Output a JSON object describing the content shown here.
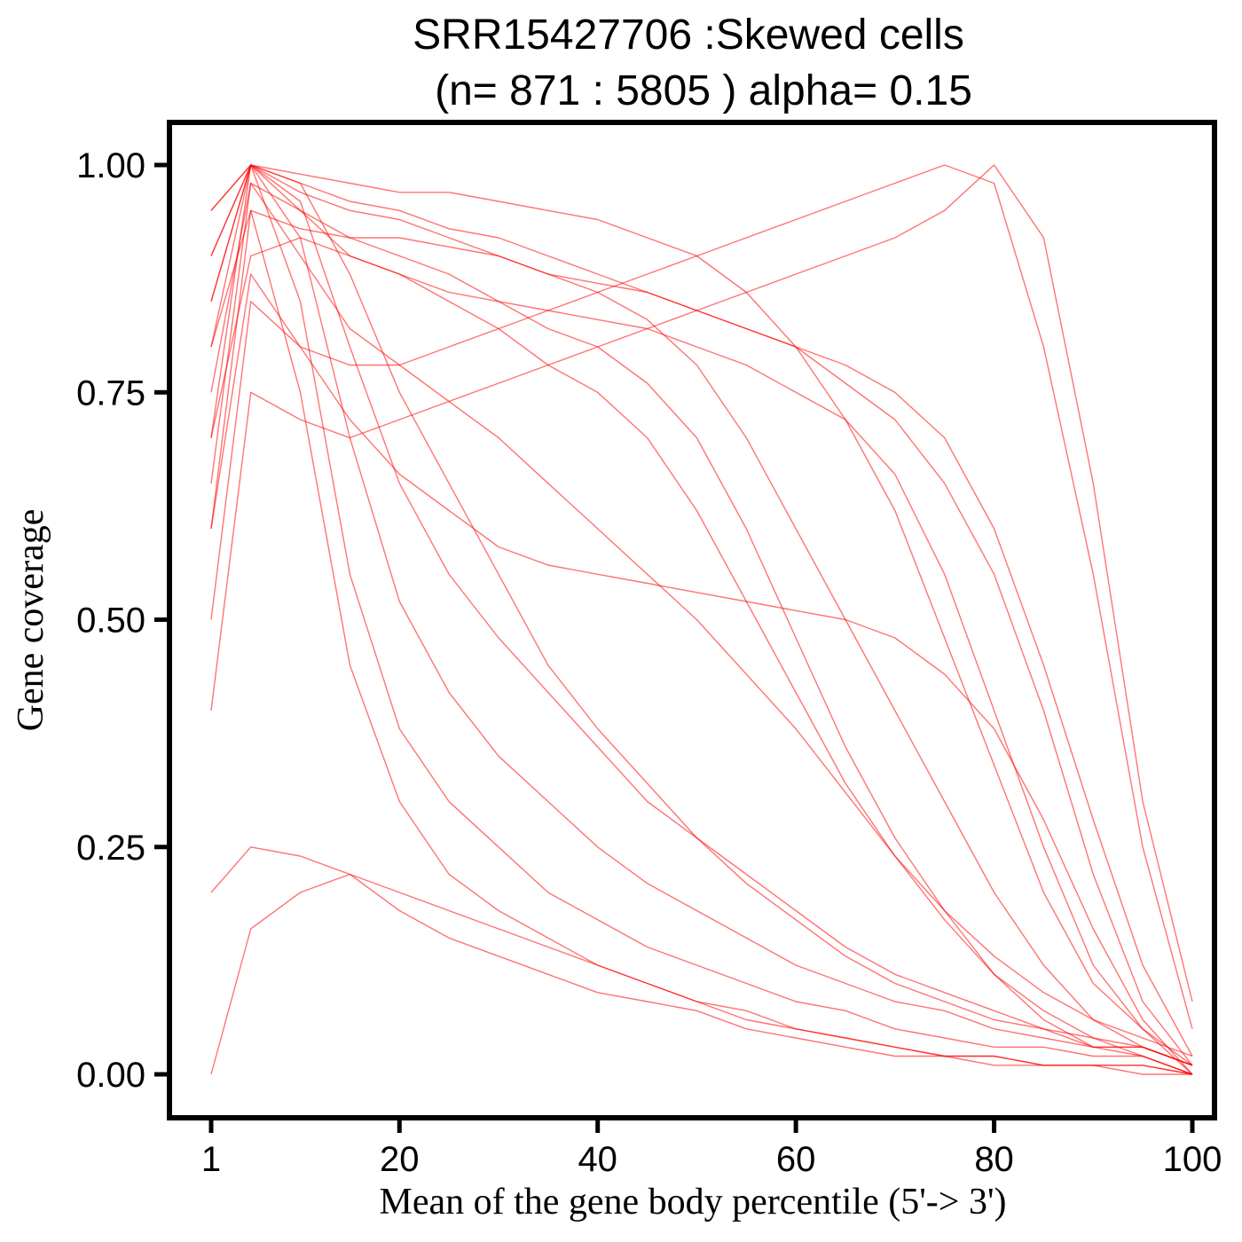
{
  "chart_data": {
    "type": "line",
    "title_line1": "SRR15427706 :Skewed cells",
    "title_line2": "(n= 871 : 5805 ) alpha= 0.15",
    "xlabel": "Mean of the gene body percentile (5'-> 3')",
    "ylabel": "Gene coverage",
    "xlim": [
      1,
      100
    ],
    "ylim": [
      0,
      1
    ],
    "xticks": [
      1,
      20,
      40,
      60,
      80,
      100
    ],
    "xtick_labels": [
      "1",
      "20",
      "40",
      "60",
      "80",
      "100"
    ],
    "yticks": [
      0,
      0.25,
      0.5,
      0.75,
      1.0
    ],
    "ytick_labels": [
      "0.00",
      "0.25",
      "0.50",
      "0.75",
      "1.00"
    ],
    "line_color": "#ff0000",
    "line_alpha": 0.15,
    "n_lines": 871,
    "x": [
      1,
      5,
      10,
      15,
      20,
      25,
      30,
      35,
      40,
      45,
      50,
      55,
      60,
      65,
      70,
      75,
      80,
      85,
      90,
      95,
      100
    ],
    "series": [
      {
        "values": [
          0.7,
          1.0,
          0.85,
          0.55,
          0.38,
          0.3,
          0.25,
          0.2,
          0.17,
          0.14,
          0.12,
          0.1,
          0.08,
          0.07,
          0.05,
          0.04,
          0.03,
          0.03,
          0.02,
          0.02,
          0.0
        ]
      },
      {
        "values": [
          0.8,
          1.0,
          0.92,
          0.7,
          0.52,
          0.42,
          0.35,
          0.3,
          0.25,
          0.21,
          0.18,
          0.15,
          0.12,
          0.1,
          0.08,
          0.07,
          0.05,
          0.04,
          0.03,
          0.03,
          0.01
        ]
      },
      {
        "values": [
          0.6,
          0.95,
          0.75,
          0.45,
          0.3,
          0.22,
          0.18,
          0.15,
          0.12,
          0.1,
          0.08,
          0.06,
          0.05,
          0.04,
          0.03,
          0.02,
          0.02,
          0.01,
          0.01,
          0.01,
          0.0
        ]
      },
      {
        "values": [
          0.9,
          1.0,
          0.98,
          0.88,
          0.75,
          0.65,
          0.55,
          0.45,
          0.38,
          0.32,
          0.26,
          0.21,
          0.17,
          0.13,
          0.1,
          0.08,
          0.06,
          0.05,
          0.03,
          0.03,
          0.01
        ]
      },
      {
        "values": [
          0.85,
          1.0,
          0.95,
          0.9,
          0.88,
          0.85,
          0.82,
          0.78,
          0.75,
          0.7,
          0.62,
          0.52,
          0.42,
          0.32,
          0.24,
          0.17,
          0.11,
          0.07,
          0.04,
          0.02,
          0.0
        ]
      },
      {
        "values": [
          0.75,
          0.98,
          0.95,
          0.92,
          0.9,
          0.88,
          0.85,
          0.82,
          0.8,
          0.76,
          0.7,
          0.6,
          0.48,
          0.36,
          0.26,
          0.18,
          0.11,
          0.06,
          0.03,
          0.02,
          0.0
        ]
      },
      {
        "values": [
          0.9,
          1.0,
          0.97,
          0.95,
          0.94,
          0.92,
          0.9,
          0.88,
          0.86,
          0.83,
          0.78,
          0.7,
          0.6,
          0.5,
          0.4,
          0.3,
          0.2,
          0.12,
          0.06,
          0.03,
          0.01
        ]
      },
      {
        "values": [
          0.7,
          0.9,
          0.92,
          0.9,
          0.88,
          0.86,
          0.85,
          0.84,
          0.83,
          0.82,
          0.8,
          0.78,
          0.75,
          0.72,
          0.66,
          0.55,
          0.4,
          0.25,
          0.12,
          0.05,
          0.0
        ]
      },
      {
        "values": [
          0.8,
          0.95,
          0.93,
          0.92,
          0.92,
          0.91,
          0.9,
          0.88,
          0.87,
          0.86,
          0.84,
          0.82,
          0.8,
          0.78,
          0.75,
          0.7,
          0.6,
          0.45,
          0.28,
          0.12,
          0.02
        ]
      },
      {
        "values": [
          0.5,
          0.85,
          0.8,
          0.78,
          0.78,
          0.8,
          0.82,
          0.84,
          0.86,
          0.88,
          0.9,
          0.92,
          0.94,
          0.96,
          0.98,
          1.0,
          0.98,
          0.8,
          0.55,
          0.25,
          0.05
        ]
      },
      {
        "values": [
          0.4,
          0.75,
          0.72,
          0.7,
          0.72,
          0.74,
          0.76,
          0.78,
          0.8,
          0.82,
          0.84,
          0.86,
          0.88,
          0.9,
          0.92,
          0.95,
          1.0,
          0.92,
          0.65,
          0.3,
          0.08
        ]
      },
      {
        "values": [
          0.95,
          1.0,
          0.98,
          0.96,
          0.95,
          0.93,
          0.92,
          0.9,
          0.88,
          0.86,
          0.84,
          0.82,
          0.8,
          0.76,
          0.72,
          0.65,
          0.55,
          0.4,
          0.22,
          0.08,
          0.01
        ]
      },
      {
        "values": [
          0.2,
          0.25,
          0.24,
          0.22,
          0.2,
          0.18,
          0.16,
          0.14,
          0.12,
          0.1,
          0.08,
          0.07,
          0.05,
          0.04,
          0.03,
          0.02,
          0.02,
          0.01,
          0.01,
          0.01,
          0.0
        ]
      },
      {
        "values": [
          0.0,
          0.16,
          0.2,
          0.22,
          0.18,
          0.15,
          0.13,
          0.11,
          0.09,
          0.08,
          0.07,
          0.05,
          0.04,
          0.03,
          0.02,
          0.02,
          0.01,
          0.01,
          0.01,
          0.0,
          0.0
        ]
      },
      {
        "values": [
          0.85,
          1.0,
          0.96,
          0.8,
          0.65,
          0.55,
          0.48,
          0.42,
          0.36,
          0.3,
          0.26,
          0.22,
          0.18,
          0.14,
          0.11,
          0.09,
          0.07,
          0.05,
          0.04,
          0.03,
          0.01
        ]
      },
      {
        "values": [
          0.65,
          0.98,
          0.9,
          0.82,
          0.78,
          0.74,
          0.7,
          0.65,
          0.6,
          0.55,
          0.5,
          0.44,
          0.38,
          0.31,
          0.24,
          0.18,
          0.13,
          0.09,
          0.06,
          0.04,
          0.02
        ]
      },
      {
        "values": [
          0.95,
          1.0,
          0.99,
          0.98,
          0.97,
          0.97,
          0.96,
          0.95,
          0.94,
          0.92,
          0.9,
          0.86,
          0.8,
          0.72,
          0.62,
          0.48,
          0.34,
          0.2,
          0.1,
          0.05,
          0.01
        ]
      },
      {
        "values": [
          0.6,
          0.88,
          0.8,
          0.72,
          0.66,
          0.62,
          0.58,
          0.56,
          0.55,
          0.54,
          0.53,
          0.52,
          0.51,
          0.5,
          0.48,
          0.44,
          0.38,
          0.28,
          0.16,
          0.06,
          0.0
        ]
      }
    ]
  }
}
